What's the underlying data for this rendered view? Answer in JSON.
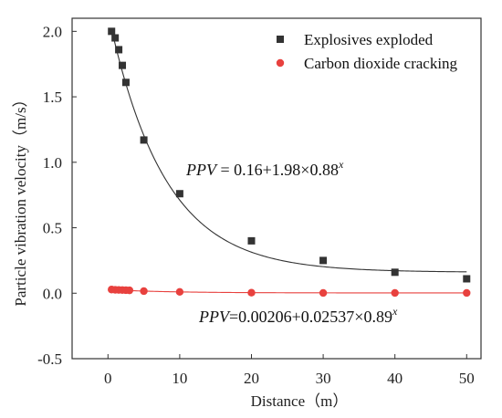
{
  "chart_data": {
    "type": "scatter",
    "xlabel": "Distance（m）",
    "ylabel": "Particle vibration velocity（m/s）",
    "xlim": [
      -5,
      52
    ],
    "ylim": [
      -0.5,
      2.1
    ],
    "xticks": [
      0,
      10,
      20,
      30,
      40,
      50
    ],
    "yticks": [
      -0.5,
      0.0,
      0.5,
      1.0,
      1.5,
      2.0
    ],
    "xtick_labels": [
      "0",
      "10",
      "20",
      "30",
      "40",
      "50"
    ],
    "ytick_labels": [
      "-0.5",
      "0.0",
      "0.5",
      "1.0",
      "1.5",
      "2.0"
    ],
    "grid": false,
    "legend_position": "top-right",
    "series": [
      {
        "name": "Explosives exploded",
        "marker": "square",
        "color": "#333333",
        "x": [
          0.5,
          1,
          1.5,
          2,
          2.5,
          5,
          10,
          20,
          30,
          40,
          50
        ],
        "y": [
          2.0,
          1.95,
          1.86,
          1.74,
          1.61,
          1.17,
          0.76,
          0.4,
          0.25,
          0.16,
          0.11
        ],
        "fit": {
          "a": 0.16,
          "b": 1.98,
          "c": 0.88,
          "color": "#333333"
        },
        "equation": {
          "lhs": "PPV",
          "rhs": " = 0.16+1.98×0.88",
          "exp": "x"
        }
      },
      {
        "name": "Carbon dioxide cracking",
        "marker": "circle",
        "color": "#e8413e",
        "x": [
          0.5,
          1,
          1.5,
          2,
          2.5,
          3,
          5,
          10,
          20,
          30,
          40,
          50
        ],
        "y": [
          0.028,
          0.026,
          0.025,
          0.024,
          0.023,
          0.022,
          0.016,
          0.01,
          0.004,
          0.002,
          0.002,
          0.002
        ],
        "fit": {
          "a": 0.00206,
          "b": 0.02537,
          "c": 0.89,
          "color": "#e8413e"
        },
        "equation": {
          "lhs": "PPV",
          "rhs": "=0.00206+0.02537×0.89",
          "exp": "x"
        }
      }
    ]
  }
}
